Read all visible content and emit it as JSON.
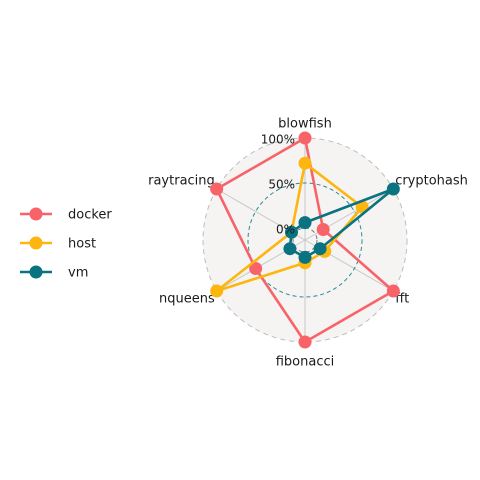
{
  "chart_data": {
    "type": "radar",
    "axes": [
      "blowfish",
      "cryptohash",
      "fft",
      "fibonacci",
      "nqueens",
      "raytracing"
    ],
    "grid_levels": [
      0,
      0.5,
      1
    ],
    "grid_labels": [
      "0%",
      "50%",
      "100%"
    ],
    "series": [
      {
        "name": "docker",
        "color": "#f8636a",
        "values": [
          1.0,
          0.1,
          1.0,
          1.0,
          0.5,
          1.0
        ]
      },
      {
        "name": "host",
        "color": "#fdb60f",
        "values": [
          0.72,
          0.6,
          0.12,
          0.12,
          1.0,
          0.04
        ]
      },
      {
        "name": "vm",
        "color": "#0a7381",
        "values": [
          0.06,
          1.0,
          0.06,
          0.06,
          0.06,
          0.04
        ]
      }
    ],
    "legend_position": "left"
  }
}
